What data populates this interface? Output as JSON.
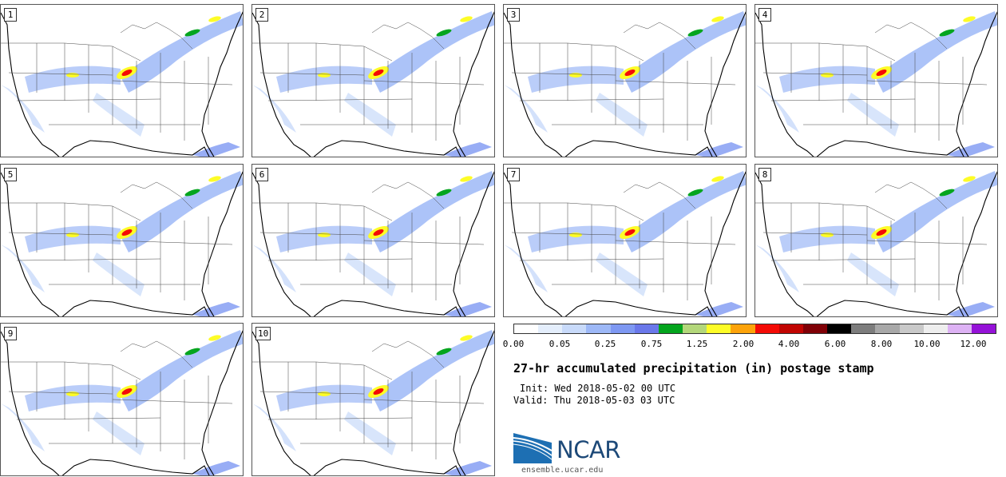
{
  "panels": [
    {
      "label": "1"
    },
    {
      "label": "2"
    },
    {
      "label": "3"
    },
    {
      "label": "4"
    },
    {
      "label": "5"
    },
    {
      "label": "6"
    },
    {
      "label": "7"
    },
    {
      "label": "8"
    },
    {
      "label": "9"
    },
    {
      "label": "10"
    }
  ],
  "colorbar": {
    "colors": [
      "#ffffff",
      "#e4eefc",
      "#c8dafa",
      "#9db8f7",
      "#7e98f2",
      "#6a78ea",
      "#04a51e",
      "#b3d77a",
      "#fdfc27",
      "#fda30a",
      "#f40b06",
      "#c10502",
      "#800006",
      "#000000",
      "#7d7d7d",
      "#a8a8a8",
      "#c9c9c9",
      "#eeeeee",
      "#ddb2f4",
      "#9512d8"
    ],
    "ticks": [
      "0.00",
      "0.05",
      "0.25",
      "0.75",
      "1.25",
      "2.00",
      "4.00",
      "6.00",
      "8.00",
      "10.00",
      "12.00"
    ]
  },
  "title": "27-hr accumulated precipitation (in) postage stamp",
  "init": "Init: Wed 2018-05-02 00 UTC",
  "valid": "Valid: Thu 2018-05-03 03 UTC",
  "logo": {
    "text": "NCAR",
    "url": "ensemble.ucar.edu"
  },
  "colors": {
    "ncar_blue": "#1d4978",
    "precip_light": "#c8dafa",
    "precip_mid": "#7e98f2"
  }
}
